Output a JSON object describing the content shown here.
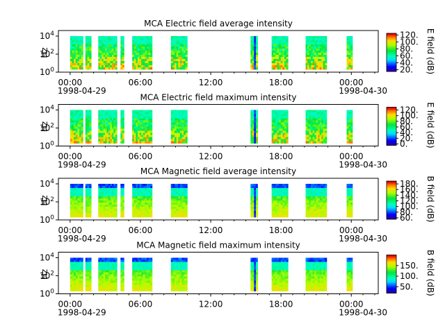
{
  "chart_data": [
    {
      "type": "heatmap",
      "title": "MCA  Electric field average intensity",
      "ylabel": "Hz",
      "yscale": "log",
      "ytick_labels": [
        {
          "base": "10",
          "exp": "0"
        },
        {
          "base": "10",
          "exp": "2"
        },
        {
          "base": "10",
          "exp": "4"
        }
      ],
      "xtick_labels": [
        "00:00",
        "06:00",
        "12:00",
        "18:00",
        "00:00"
      ],
      "xtick_hours": [
        0,
        6,
        12,
        18,
        24
      ],
      "date_labels": [
        "1998-04-29",
        "1998-04-30"
      ],
      "colorbar_label": "E field (dB)",
      "colorbar_ticks": [
        "20.",
        "40.",
        "60.",
        "80.",
        "100.",
        "120."
      ],
      "colorbar_range": [
        15,
        125
      ],
      "colormap": "rainbow",
      "field": "electric",
      "data_hours": [
        [
          0.0,
          1.1
        ],
        [
          1.3,
          1.8
        ],
        [
          2.4,
          4.0
        ],
        [
          4.3,
          4.6
        ],
        [
          5.3,
          7.0
        ],
        [
          8.6,
          10.0
        ],
        [
          15.4,
          16.0
        ],
        [
          17.2,
          18.6
        ],
        [
          20.1,
          21.9
        ],
        [
          23.6,
          24.1
        ]
      ]
    },
    {
      "type": "heatmap",
      "title": "MCA  Electric field maximum intensity",
      "ylabel": "Hz",
      "yscale": "log",
      "ytick_labels": [
        {
          "base": "10",
          "exp": "0"
        },
        {
          "base": "10",
          "exp": "2"
        },
        {
          "base": "10",
          "exp": "4"
        }
      ],
      "xtick_labels": [
        "00:00",
        "06:00",
        "12:00",
        "18:00",
        "00:00"
      ],
      "xtick_hours": [
        0,
        6,
        12,
        18,
        24
      ],
      "date_labels": [
        "1998-04-29",
        "1998-04-30"
      ],
      "colorbar_label": "E field (dB)",
      "colorbar_ticks": [
        "0.",
        "20.",
        "40.",
        "60.",
        "80.",
        "100.",
        "120."
      ],
      "colorbar_range": [
        -5,
        130
      ],
      "colormap": "rainbow",
      "field": "electric",
      "data_hours": [
        [
          0.0,
          1.1
        ],
        [
          1.3,
          1.8
        ],
        [
          2.4,
          4.0
        ],
        [
          4.3,
          4.6
        ],
        [
          5.3,
          7.0
        ],
        [
          8.6,
          10.0
        ],
        [
          15.4,
          16.0
        ],
        [
          17.2,
          18.6
        ],
        [
          20.1,
          21.9
        ],
        [
          23.6,
          24.1
        ]
      ]
    },
    {
      "type": "heatmap",
      "title": "MCA  Magnetic field average intensity",
      "ylabel": "Hz",
      "yscale": "log",
      "ytick_labels": [
        {
          "base": "10",
          "exp": "0"
        },
        {
          "base": "10",
          "exp": "2"
        },
        {
          "base": "10",
          "exp": "4"
        }
      ],
      "xtick_labels": [
        "00:00",
        "06:00",
        "12:00",
        "18:00",
        "00:00"
      ],
      "xtick_hours": [
        0,
        6,
        12,
        18,
        24
      ],
      "date_labels": [
        "1998-04-29",
        "1998-04-30"
      ],
      "colorbar_label": "B field (dB)",
      "colorbar_ticks": [
        "60.",
        "80.",
        "100.",
        "120.",
        "140.",
        "160.",
        "180."
      ],
      "colorbar_range": [
        55,
        190
      ],
      "colormap": "rainbow",
      "field": "magnetic",
      "data_hours": [
        [
          0.0,
          1.1
        ],
        [
          1.3,
          1.8
        ],
        [
          2.4,
          4.0
        ],
        [
          4.3,
          4.6
        ],
        [
          5.3,
          7.0
        ],
        [
          8.6,
          10.0
        ],
        [
          15.4,
          16.0
        ],
        [
          17.2,
          18.6
        ],
        [
          20.1,
          21.9
        ],
        [
          23.6,
          24.1
        ]
      ]
    },
    {
      "type": "heatmap",
      "title": "MCA  Magnetic field maximum intensity",
      "ylabel": "Hz",
      "yscale": "log",
      "ytick_labels": [
        {
          "base": "10",
          "exp": "0"
        },
        {
          "base": "10",
          "exp": "2"
        },
        {
          "base": "10",
          "exp": "4"
        }
      ],
      "xtick_labels": [
        "00:00",
        "06:00",
        "12:00",
        "18:00",
        "00:00"
      ],
      "xtick_hours": [
        0,
        6,
        12,
        18,
        24
      ],
      "date_labels": [
        "1998-04-29",
        "1998-04-30"
      ],
      "colorbar_label": "B field (dB)",
      "colorbar_ticks": [
        "50.",
        "100.",
        "150."
      ],
      "colorbar_range": [
        20,
        200
      ],
      "colormap": "rainbow",
      "field": "magnetic",
      "data_hours": [
        [
          0.0,
          1.1
        ],
        [
          1.3,
          1.8
        ],
        [
          2.4,
          4.0
        ],
        [
          4.3,
          4.6
        ],
        [
          5.3,
          7.0
        ],
        [
          8.6,
          10.0
        ],
        [
          15.4,
          16.0
        ],
        [
          17.2,
          18.6
        ],
        [
          20.1,
          21.9
        ],
        [
          23.6,
          24.1
        ]
      ]
    }
  ]
}
